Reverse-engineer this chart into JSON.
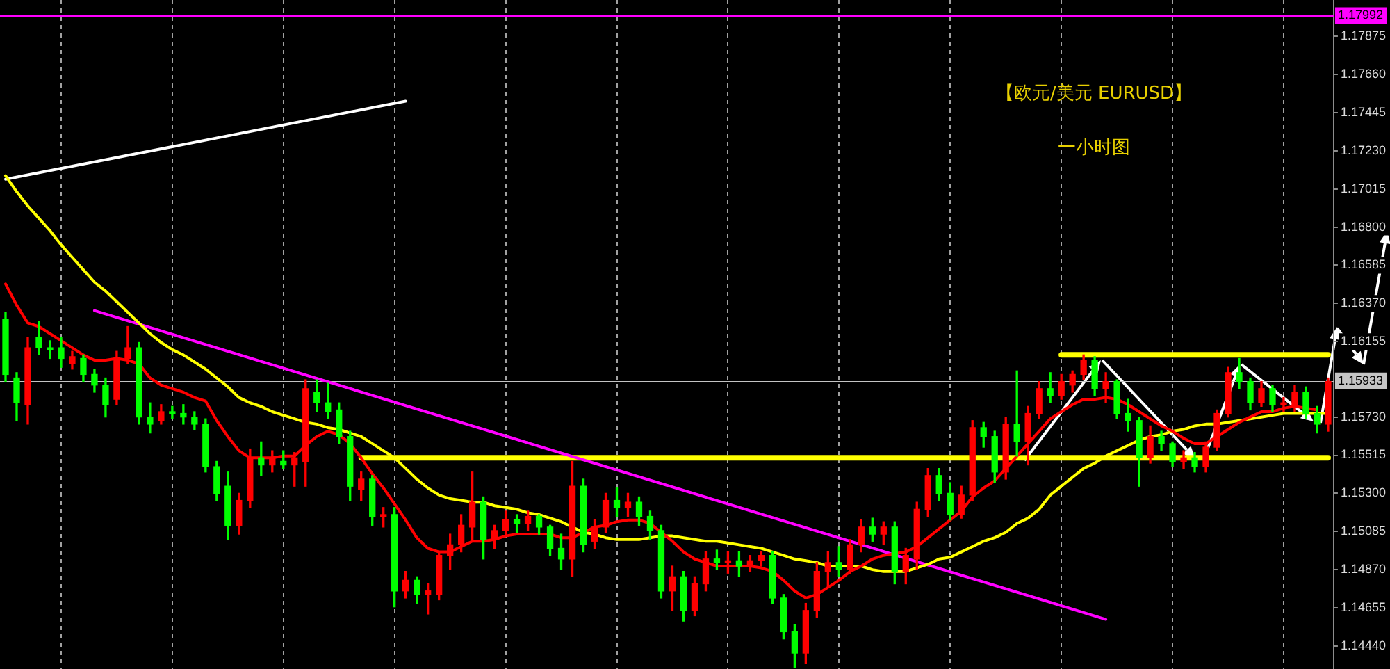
{
  "chart_data": {
    "type": "candlestick",
    "title": "【欧元/美元 EURUSD】",
    "subtitle": "一小时图",
    "categories": [
      null,
      null,
      null,
      null,
      null,
      null,
      null,
      null,
      null,
      null,
      null,
      null,
      null,
      null,
      null,
      null,
      null,
      null,
      null,
      null,
      null,
      null,
      null,
      null,
      null,
      null,
      null,
      null,
      null,
      null,
      null,
      null,
      null,
      null,
      null,
      null,
      null,
      null,
      null,
      null,
      null,
      null,
      null,
      null,
      null,
      null,
      null,
      null,
      null,
      null,
      null,
      null,
      null,
      null,
      null,
      null,
      null,
      null,
      null,
      null,
      null,
      null,
      null,
      null,
      null,
      null,
      null,
      null,
      null,
      null,
      null,
      null,
      null,
      null,
      null,
      null,
      null,
      null,
      null,
      null,
      null,
      null,
      null,
      null,
      null,
      null,
      null,
      null,
      null,
      null,
      null,
      null,
      null,
      null,
      null,
      null,
      null,
      null,
      null,
      null,
      null,
      null,
      null,
      null,
      null,
      null,
      null,
      null,
      null,
      null,
      null,
      null,
      null,
      null,
      null,
      null,
      null,
      null,
      null,
      null
    ],
    "ohlc": [
      [
        1.1628,
        1.1632,
        1.1593,
        1.1597
      ],
      [
        1.1595,
        1.1598,
        1.1571,
        1.1581
      ],
      [
        1.158,
        1.1618,
        1.1569,
        1.1612
      ],
      [
        1.1618,
        1.1627,
        1.1608,
        1.1612
      ],
      [
        1.1612,
        1.1616,
        1.1606,
        1.1611
      ],
      [
        1.1612,
        1.1618,
        1.1601,
        1.1606
      ],
      [
        1.1603,
        1.161,
        1.16,
        1.1607
      ],
      [
        1.1606,
        1.1608,
        1.1593,
        1.1597
      ],
      [
        1.1597,
        1.16,
        1.1587,
        1.1591
      ],
      [
        1.1591,
        1.1595,
        1.1573,
        1.158
      ],
      [
        1.1583,
        1.161,
        1.158,
        1.1606
      ],
      [
        1.1606,
        1.1624,
        1.1603,
        1.1612
      ],
      [
        1.1612,
        1.1615,
        1.1569,
        1.1573
      ],
      [
        1.1573,
        1.1581,
        1.1564,
        1.1569
      ],
      [
        1.1571,
        1.158,
        1.1569,
        1.1576
      ],
      [
        1.1576,
        1.1579,
        1.1572,
        1.1575
      ],
      [
        1.1575,
        1.158,
        1.1569,
        1.1573
      ],
      [
        1.1573,
        1.1576,
        1.1566,
        1.1569
      ],
      [
        1.1569,
        1.1572,
        1.1542,
        1.1545
      ],
      [
        1.1545,
        1.1548,
        1.1526,
        1.153
      ],
      [
        1.1534,
        1.1542,
        1.1504,
        1.1512
      ],
      [
        1.1512,
        1.153,
        1.1507,
        1.1526
      ],
      [
        1.1526,
        1.1555,
        1.1522,
        1.155
      ],
      [
        1.155,
        1.1559,
        1.154,
        1.1546
      ],
      [
        1.1546,
        1.1554,
        1.1542,
        1.155
      ],
      [
        1.1548,
        1.1554,
        1.1544,
        1.1546
      ],
      [
        1.1546,
        1.1553,
        1.1534,
        1.155
      ],
      [
        1.1548,
        1.1594,
        1.1534,
        1.1589
      ],
      [
        1.1587,
        1.1594,
        1.1576,
        1.1581
      ],
      [
        1.1581,
        1.1592,
        1.1572,
        1.1576
      ],
      [
        1.1577,
        1.1581,
        1.1558,
        1.1562
      ],
      [
        1.1562,
        1.1565,
        1.1526,
        1.1534
      ],
      [
        1.1532,
        1.1542,
        1.1526,
        1.1538
      ],
      [
        1.1538,
        1.154,
        1.1512,
        1.1517
      ],
      [
        1.1517,
        1.1522,
        1.1511,
        1.1518
      ],
      [
        1.1518,
        1.1522,
        1.1466,
        1.1475
      ],
      [
        1.1475,
        1.1486,
        1.1471,
        1.1481
      ],
      [
        1.1481,
        1.1483,
        1.1468,
        1.1473
      ],
      [
        1.1473,
        1.1479,
        1.1462,
        1.1475
      ],
      [
        1.1473,
        1.1497,
        1.147,
        1.1495
      ],
      [
        1.1495,
        1.1507,
        1.1487,
        1.1501
      ],
      [
        1.1501,
        1.1518,
        1.1497,
        1.1512
      ],
      [
        1.1511,
        1.1542,
        1.1504,
        1.1525
      ],
      [
        1.1525,
        1.1528,
        1.1493,
        1.1504
      ],
      [
        1.1504,
        1.1512,
        1.1499,
        1.1509
      ],
      [
        1.1509,
        1.152,
        1.1506,
        1.1515
      ],
      [
        1.1515,
        1.1518,
        1.1508,
        1.1513
      ],
      [
        1.1513,
        1.152,
        1.1509,
        1.1517
      ],
      [
        1.1517,
        1.1518,
        1.1507,
        1.1511
      ],
      [
        1.1511,
        1.1512,
        1.1495,
        1.1499
      ],
      [
        1.1499,
        1.1507,
        1.1487,
        1.1493
      ],
      [
        1.1493,
        1.1548,
        1.1483,
        1.1534
      ],
      [
        1.1534,
        1.1538,
        1.1497,
        1.1501
      ],
      [
        1.1503,
        1.1515,
        1.1499,
        1.1511
      ],
      [
        1.1511,
        1.153,
        1.1508,
        1.1526
      ],
      [
        1.1526,
        1.1533,
        1.1517,
        1.1522
      ],
      [
        1.1522,
        1.153,
        1.1517,
        1.1525
      ],
      [
        1.1525,
        1.1528,
        1.1512,
        1.1517
      ],
      [
        1.1517,
        1.152,
        1.1504,
        1.1509
      ],
      [
        1.1509,
        1.1512,
        1.1471,
        1.1475
      ],
      [
        1.1475,
        1.1489,
        1.1464,
        1.1483
      ],
      [
        1.1483,
        1.1486,
        1.1458,
        1.1464
      ],
      [
        1.1464,
        1.1483,
        1.1461,
        1.1479
      ],
      [
        1.1479,
        1.1497,
        1.1475,
        1.1493
      ],
      [
        1.1493,
        1.1498,
        1.1487,
        1.1491
      ],
      [
        1.1491,
        1.1497,
        1.1485,
        1.1492
      ],
      [
        1.1492,
        1.1497,
        1.1483,
        1.1489
      ],
      [
        1.1489,
        1.1495,
        1.1486,
        1.1492
      ],
      [
        1.1492,
        1.1497,
        1.1489,
        1.1495
      ],
      [
        1.1495,
        1.1497,
        1.1468,
        1.1471
      ],
      [
        1.1471,
        1.1473,
        1.1448,
        1.1452
      ],
      [
        1.1452,
        1.1456,
        1.1432,
        1.144
      ],
      [
        1.144,
        1.1468,
        1.1434,
        1.1464
      ],
      [
        1.1464,
        1.1491,
        1.146,
        1.1486
      ],
      [
        1.1486,
        1.1497,
        1.1478,
        1.1491
      ],
      [
        1.1491,
        1.15,
        1.1483,
        1.1487
      ],
      [
        1.1487,
        1.1504,
        1.1485,
        1.1501
      ],
      [
        1.1501,
        1.1515,
        1.1497,
        1.1511
      ],
      [
        1.1511,
        1.1516,
        1.1503,
        1.1507
      ],
      [
        1.1507,
        1.1514,
        1.1501,
        1.1511
      ],
      [
        1.1511,
        1.1514,
        1.1479,
        1.1486
      ],
      [
        1.1486,
        1.1499,
        1.1479,
        1.1495
      ],
      [
        1.1493,
        1.1525,
        1.1487,
        1.1521
      ],
      [
        1.1521,
        1.1544,
        1.1517,
        1.154
      ],
      [
        1.154,
        1.1544,
        1.1526,
        1.153
      ],
      [
        1.153,
        1.1536,
        1.1515,
        1.1518
      ],
      [
        1.1518,
        1.1534,
        1.1516,
        1.1529
      ],
      [
        1.1529,
        1.1571,
        1.1526,
        1.1567
      ],
      [
        1.1567,
        1.157,
        1.1556,
        1.1562
      ],
      [
        1.1562,
        1.1565,
        1.1536,
        1.1542
      ],
      [
        1.1542,
        1.1573,
        1.1538,
        1.1569
      ],
      [
        1.1569,
        1.1599,
        1.1551,
        1.1559
      ],
      [
        1.1559,
        1.1579,
        1.1546,
        1.1575
      ],
      [
        1.1575,
        1.1593,
        1.1572,
        1.1589
      ],
      [
        1.1589,
        1.1598,
        1.1581,
        1.1585
      ],
      [
        1.1585,
        1.1597,
        1.1583,
        1.1593
      ],
      [
        1.1591,
        1.1599,
        1.1587,
        1.1597
      ],
      [
        1.1597,
        1.1608,
        1.1594,
        1.1605
      ],
      [
        1.1605,
        1.1607,
        1.1585,
        1.1589
      ],
      [
        1.1589,
        1.1598,
        1.1581,
        1.1593
      ],
      [
        1.1593,
        1.1594,
        1.1572,
        1.1575
      ],
      [
        1.1575,
        1.1583,
        1.1565,
        1.1571
      ],
      [
        1.1571,
        1.1573,
        1.1534,
        1.155
      ],
      [
        1.155,
        1.1568,
        1.1547,
        1.1562
      ],
      [
        1.1562,
        1.1565,
        1.1554,
        1.1558
      ],
      [
        1.1558,
        1.1559,
        1.1545,
        1.1548
      ],
      [
        1.1548,
        1.1554,
        1.1544,
        1.155
      ],
      [
        1.155,
        1.1553,
        1.1542,
        1.1545
      ],
      [
        1.1545,
        1.1559,
        1.1542,
        1.1556
      ],
      [
        1.1556,
        1.1577,
        1.1554,
        1.1575
      ],
      [
        1.1575,
        1.1601,
        1.1573,
        1.1598
      ],
      [
        1.1598,
        1.1606,
        1.1589,
        1.1593
      ],
      [
        1.1593,
        1.1595,
        1.1577,
        1.1581
      ],
      [
        1.1581,
        1.1593,
        1.1579,
        1.1589
      ],
      [
        1.1589,
        1.1591,
        1.1576,
        1.158
      ],
      [
        1.158,
        1.1584,
        1.1576,
        1.1581
      ],
      [
        1.158,
        1.1591,
        1.1576,
        1.1587
      ],
      [
        1.1587,
        1.159,
        1.1572,
        1.1575
      ],
      [
        1.1575,
        1.1579,
        1.1564,
        1.1569
      ],
      [
        1.1569,
        1.1595,
        1.1565,
        1.1593
      ]
    ],
    "colors": [
      "#00ff00",
      "#00ff00",
      "#ff0000",
      "#00ff00",
      "#00ff00",
      "#00ff00",
      "#ff0000",
      "#00ff00",
      "#00ff00",
      "#00ff00",
      "#ff0000",
      "#ff0000",
      "#00ff00",
      "#00ff00",
      "#ff0000",
      "#00ff00",
      "#00ff00",
      "#00ff00",
      "#00ff00",
      "#00ff00",
      "#00ff00",
      "#ff0000",
      "#ff0000",
      "#00ff00",
      "#ff0000",
      "#00ff00",
      "#ff0000",
      "#ff0000",
      "#00ff00",
      "#00ff00",
      "#00ff00",
      "#00ff00",
      "#ff0000",
      "#00ff00",
      "#ff0000",
      "#00ff00",
      "#ff0000",
      "#00ff00",
      "#ff0000",
      "#ff0000",
      "#ff0000",
      "#ff0000",
      "#ff0000",
      "#00ff00",
      "#ff0000",
      "#ff0000",
      "#00ff00",
      "#ff0000",
      "#00ff00",
      "#00ff00",
      "#00ff00",
      "#ff0000",
      "#00ff00",
      "#ff0000",
      "#ff0000",
      "#00ff00",
      "#ff0000",
      "#00ff00",
      "#00ff00",
      "#00ff00",
      "#ff0000",
      "#00ff00",
      "#ff0000",
      "#ff0000",
      "#00ff00",
      "#ff0000",
      "#00ff00",
      "#ff0000",
      "#ff0000",
      "#00ff00",
      "#00ff00",
      "#00ff00",
      "#ff0000",
      "#ff0000",
      "#ff0000",
      "#00ff00",
      "#ff0000",
      "#ff0000",
      "#00ff00",
      "#ff0000",
      "#00ff00",
      "#ff0000",
      "#ff0000",
      "#ff0000",
      "#00ff00",
      "#00ff00",
      "#ff0000",
      "#ff0000",
      "#00ff00",
      "#00ff00",
      "#ff0000",
      "#00ff00",
      "#ff0000",
      "#ff0000",
      "#00ff00",
      "#ff0000",
      "#ff0000",
      "#ff0000",
      "#00ff00",
      "#ff0000",
      "#00ff00",
      "#00ff00",
      "#00ff00",
      "#ff0000",
      "#00ff00",
      "#00ff00",
      "#ff0000",
      "#00ff00",
      "#ff0000",
      "#ff0000",
      "#ff0000",
      "#00ff00",
      "#00ff00",
      "#ff0000",
      "#00ff00",
      "#ff0000",
      "#ff0000",
      "#00ff00",
      "#00ff00",
      "#ff0000"
    ],
    "series": [
      {
        "type": "line",
        "color": "#ff0000",
        "values": [
          1.1648,
          1.1636,
          1.1626,
          1.1624,
          1.162,
          1.1616,
          1.1612,
          1.1608,
          1.1605,
          1.1605,
          1.1606,
          1.1605,
          1.1603,
          1.1595,
          1.1591,
          1.1589,
          1.1587,
          1.1584,
          1.1582,
          1.1571,
          1.1562,
          1.1554,
          1.155,
          1.155,
          1.155,
          1.1551,
          1.1551,
          1.1557,
          1.1562,
          1.1565,
          1.1563,
          1.1558,
          1.155,
          1.1541,
          1.1533,
          1.1524,
          1.1515,
          1.1505,
          1.1499,
          1.1497,
          1.1497,
          1.15,
          1.1503,
          1.1503,
          1.1504,
          1.1506,
          1.1507,
          1.1507,
          1.1507,
          1.1507,
          1.1505,
          1.1505,
          1.1508,
          1.1511,
          1.1512,
          1.1514,
          1.1515,
          1.1515,
          1.1513,
          1.1508,
          1.1503,
          1.1497,
          1.1493,
          1.1491,
          1.1489,
          1.1489,
          1.1489,
          1.1489,
          1.1488,
          1.1486,
          1.1481,
          1.1475,
          1.1471,
          1.1473,
          1.1477,
          1.1481,
          1.1486,
          1.1489,
          1.1493,
          1.1495,
          1.1496,
          1.1497,
          1.15,
          1.1505,
          1.151,
          1.1515,
          1.152,
          1.1528,
          1.1533,
          1.1537,
          1.1544,
          1.1551,
          1.1558,
          1.1565,
          1.1572,
          1.1576,
          1.158,
          1.1583,
          1.1583,
          1.1584,
          1.1583,
          1.158,
          1.1576,
          1.1572,
          1.1568,
          1.1565,
          1.1561,
          1.1558,
          1.1558,
          1.1562,
          1.1566,
          1.157,
          1.1573,
          1.1576,
          1.1576,
          1.1578,
          1.1579,
          1.1578,
          1.1577,
          null
        ]
      },
      {
        "type": "line",
        "color": "#ffff00",
        "values": [
          1.1709,
          1.17,
          1.1692,
          1.1685,
          1.1678,
          1.167,
          1.1663,
          1.1656,
          1.1649,
          1.1644,
          1.1638,
          1.1632,
          1.1626,
          1.162,
          1.1615,
          1.1611,
          1.1608,
          1.1604,
          1.16,
          1.1595,
          1.159,
          1.1584,
          1.1581,
          1.1579,
          1.1576,
          1.1574,
          1.1572,
          1.157,
          1.1569,
          1.1567,
          1.1566,
          1.1564,
          1.1562,
          1.1558,
          1.1554,
          1.155,
          1.1544,
          1.1538,
          1.1533,
          1.1529,
          1.1527,
          1.1526,
          1.1525,
          1.1525,
          1.1523,
          1.1522,
          1.1521,
          1.1519,
          1.1518,
          1.1516,
          1.1514,
          1.1511,
          1.1508,
          1.1507,
          1.1505,
          1.1504,
          1.1504,
          1.1504,
          1.1505,
          1.1506,
          1.1506,
          1.1505,
          1.1504,
          1.1503,
          1.1503,
          1.1502,
          1.1501,
          1.15,
          1.1499,
          1.1497,
          1.1495,
          1.1493,
          1.1492,
          1.1491,
          1.1489,
          1.1489,
          1.1489,
          1.1489,
          1.1487,
          1.1486,
          1.1486,
          1.1486,
          1.1488,
          1.149,
          1.1493,
          1.1494,
          1.1497,
          1.15,
          1.1503,
          1.1505,
          1.1508,
          1.1513,
          1.1516,
          1.1521,
          1.1529,
          1.1534,
          1.1539,
          1.1544,
          1.1547,
          1.1551,
          1.1554,
          1.1557,
          1.156,
          1.1562,
          1.1563,
          1.1565,
          1.1566,
          1.1568,
          1.1569,
          1.1569,
          1.157,
          1.1571,
          1.1572,
          1.1573,
          1.1574,
          1.1575,
          1.1575,
          1.1575,
          1.1575,
          1.1575
        ]
      },
      {
        "type": "line",
        "color": "#ffffff",
        "values": [
          1.1707,
          null,
          null,
          null,
          null,
          null,
          null,
          null,
          null,
          null,
          null,
          null,
          null,
          null,
          null,
          null,
          null,
          null,
          null,
          null,
          null,
          null,
          null,
          null,
          null,
          null,
          null,
          null,
          null,
          null,
          null,
          null,
          null,
          null,
          null,
          null,
          1.1751,
          null,
          null,
          null,
          null,
          null,
          null,
          null,
          null,
          null,
          null,
          null,
          null,
          null,
          null,
          null,
          null,
          null,
          null,
          null,
          null,
          null,
          null,
          null,
          null,
          null,
          null,
          null,
          null,
          null,
          null,
          null,
          null,
          null,
          null,
          null,
          null,
          null,
          null,
          null,
          null,
          null,
          null,
          null,
          null,
          null,
          null,
          null,
          null,
          null,
          null,
          null,
          null,
          null,
          null,
          null,
          null,
          null,
          null,
          null,
          null,
          null,
          null,
          null,
          null,
          null,
          null,
          null,
          null,
          null,
          null,
          null,
          null,
          null,
          null,
          null,
          null,
          null,
          null,
          null,
          null,
          null,
          null,
          null
        ]
      },
      {
        "type": "line",
        "color": "#ff00ff",
        "values": [
          null,
          null,
          null,
          null,
          null,
          null,
          null,
          null,
          1.1633,
          null,
          null,
          null,
          null,
          null,
          null,
          null,
          null,
          null,
          null,
          null,
          null,
          null,
          null,
          null,
          null,
          null,
          null,
          null,
          null,
          null,
          null,
          null,
          null,
          null,
          null,
          null,
          null,
          null,
          null,
          null,
          null,
          null,
          null,
          null,
          null,
          null,
          null,
          null,
          null,
          null,
          null,
          null,
          null,
          null,
          null,
          null,
          null,
          null,
          null,
          null,
          null,
          null,
          null,
          null,
          null,
          null,
          null,
          null,
          null,
          null,
          null,
          null,
          null,
          null,
          null,
          null,
          null,
          null,
          null,
          null,
          null,
          null,
          null,
          null,
          null,
          null,
          null,
          null,
          null,
          null,
          null,
          null,
          null,
          null,
          null,
          null,
          null,
          null,
          null,
          1.1459,
          null,
          null,
          null,
          null,
          null,
          null,
          null,
          null,
          null,
          null,
          null,
          null,
          null,
          null,
          null,
          null,
          null,
          null,
          null,
          null
        ]
      },
      {
        "type": "line",
        "color": "#ffff00",
        "values": [
          null,
          null,
          null,
          null,
          null,
          null,
          null,
          null,
          null,
          null,
          null,
          null,
          null,
          null,
          null,
          null,
          null,
          null,
          null,
          null,
          null,
          null,
          null,
          null,
          null,
          null,
          null,
          null,
          null,
          null,
          null,
          null,
          1.155,
          null,
          null,
          null,
          null,
          null,
          null,
          null,
          null,
          null,
          null,
          null,
          null,
          null,
          null,
          null,
          null,
          null,
          null,
          null,
          null,
          null,
          null,
          null,
          null,
          null,
          null,
          null,
          null,
          null,
          null,
          null,
          null,
          null,
          null,
          null,
          null,
          null,
          null,
          null,
          null,
          null,
          null,
          null,
          null,
          null,
          null,
          null,
          null,
          null,
          null,
          null,
          null,
          null,
          null,
          null,
          null,
          null,
          null,
          null,
          null,
          null,
          null,
          null,
          null,
          null,
          null,
          null,
          null,
          null,
          null,
          null,
          null,
          null,
          null,
          null,
          null,
          null,
          null,
          null,
          null,
          null,
          null,
          null,
          null,
          null,
          null,
          1.155
        ]
      },
      {
        "type": "line",
        "color": "#ffff00",
        "values": [
          null,
          null,
          null,
          null,
          null,
          null,
          null,
          null,
          null,
          null,
          null,
          null,
          null,
          null,
          null,
          null,
          null,
          null,
          null,
          null,
          null,
          null,
          null,
          null,
          null,
          null,
          null,
          null,
          null,
          null,
          null,
          null,
          null,
          null,
          null,
          null,
          null,
          null,
          null,
          null,
          null,
          null,
          null,
          null,
          null,
          null,
          null,
          null,
          null,
          null,
          null,
          null,
          null,
          null,
          null,
          null,
          null,
          null,
          null,
          null,
          null,
          null,
          null,
          null,
          null,
          null,
          null,
          null,
          null,
          null,
          null,
          null,
          null,
          null,
          null,
          null,
          null,
          null,
          null,
          null,
          null,
          null,
          null,
          null,
          null,
          null,
          null,
          null,
          null,
          null,
          null,
          null,
          null,
          null,
          null,
          1.1608,
          null,
          null,
          null,
          null,
          null,
          null,
          null,
          null,
          null,
          null,
          null,
          null,
          null,
          null,
          null,
          null,
          null,
          null,
          null,
          null,
          null,
          null,
          null,
          1.1608
        ]
      }
    ],
    "ylim": [
      1.1431,
      1.1808
    ],
    "yticks": [
      {
        "value": 1.1444,
        "label": "1.14440"
      },
      1.14655,
      {
        "value": 1.1487,
        "label": "1.14870"
      },
      1.15085,
      {
        "value": 1.153,
        "label": "1.15300"
      },
      1.15515,
      {
        "value": 1.1573,
        "label": "1.15730"
      },
      1.16155,
      {
        "value": 1.1637,
        "label": "1.16370"
      },
      1.16585,
      {
        "value": 1.168,
        "label": "1.16800"
      },
      1.17015,
      {
        "value": 1.1723,
        "label": "1.17230"
      },
      1.17445,
      {
        "value": 1.1766,
        "label": "1.17660"
      },
      1.17875
    ],
    "ref_lines": [
      {
        "axis": "y",
        "value": 1.17992,
        "label": "1.17992",
        "color": "#ff00ff"
      },
      {
        "axis": "y",
        "value": 1.15933,
        "label": "1.15933",
        "color": "#c4c4c4"
      }
    ],
    "grid": "x",
    "tick_labels": "y"
  }
}
